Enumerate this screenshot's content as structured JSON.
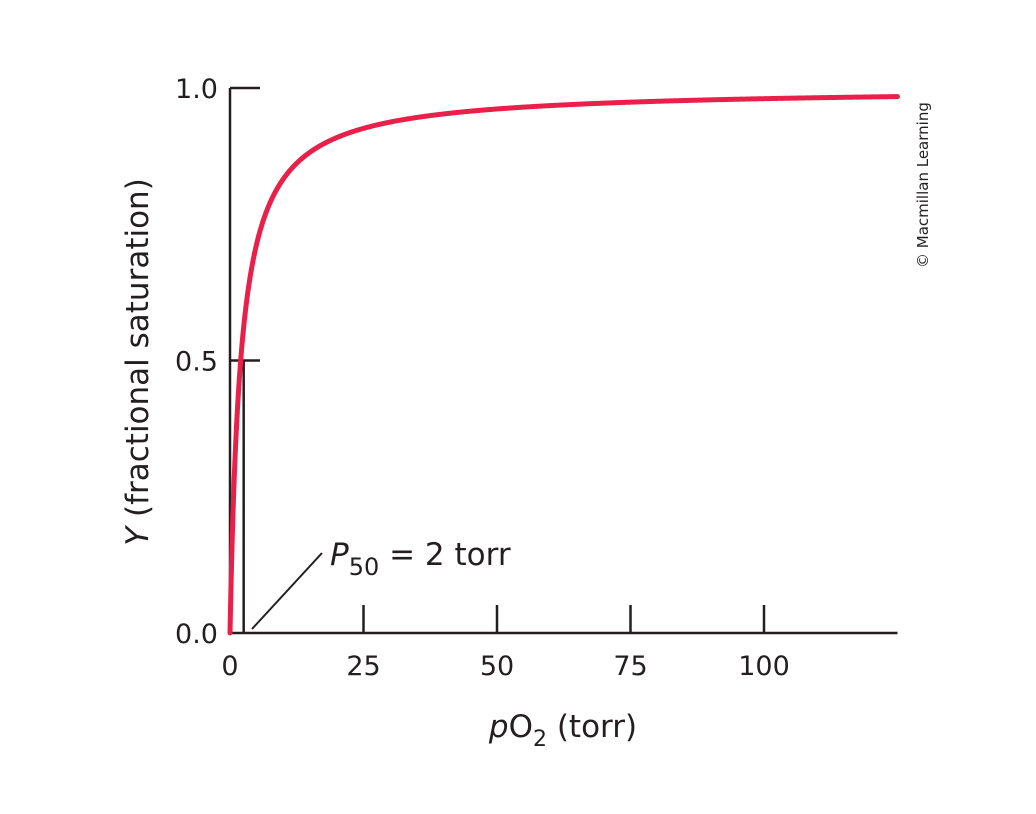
{
  "chart_data": {
    "type": "line",
    "xlabel": {
      "italic": "p",
      "main": "O",
      "sub": "2",
      "rest": " (torr)"
    },
    "ylabel": {
      "italic": "Y",
      "rest": " (fractional saturation)"
    },
    "xlim": [
      0,
      125
    ],
    "ylim": [
      0,
      1.0
    ],
    "x_ticks": [
      0,
      25,
      50,
      75,
      100
    ],
    "x_tick_labels": [
      "0",
      "25",
      "50",
      "75",
      "100"
    ],
    "y_ticks": [
      0.0,
      0.5,
      1.0
    ],
    "y_tick_labels": [
      "0.0",
      "0.5",
      "1.0"
    ],
    "grid": false,
    "series": [
      {
        "function": "Y = pO2 / (pO2 + P50)",
        "P50": 2,
        "color": "#e8204a",
        "x": [
          0,
          1,
          2,
          4,
          6,
          10,
          15,
          20,
          30,
          50,
          75,
          100,
          125
        ],
        "y": [
          0,
          0.333,
          0.5,
          0.667,
          0.75,
          0.833,
          0.882,
          0.909,
          0.938,
          0.962,
          0.974,
          0.98,
          0.984
        ]
      }
    ],
    "annotation": {
      "italic": "P",
      "sub": "50",
      "rest": " = 2 torr",
      "x": 2
    },
    "copyright": "© Macmillan Learning"
  }
}
